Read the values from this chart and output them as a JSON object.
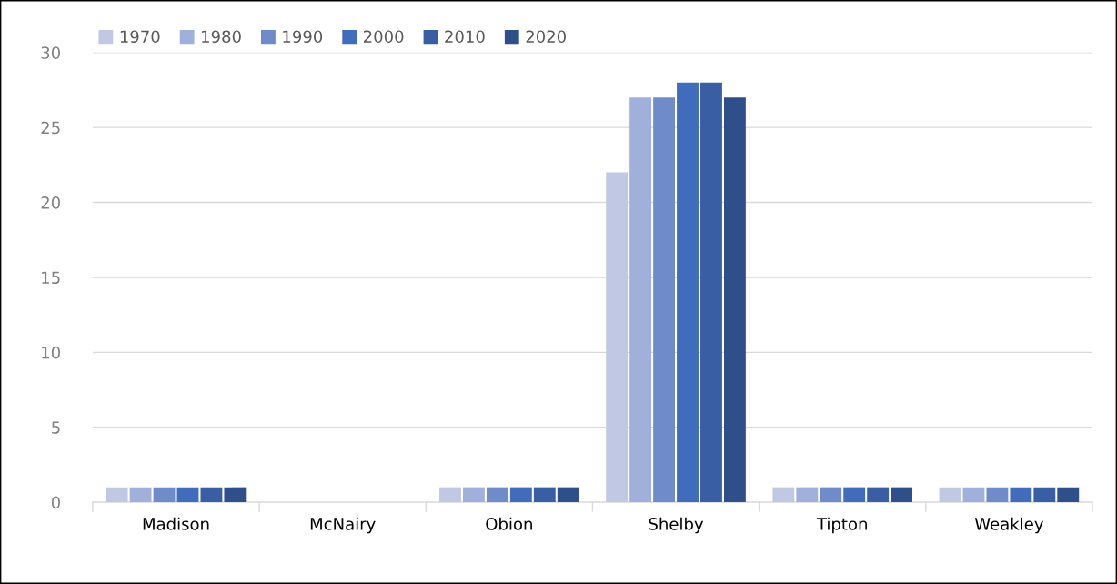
{
  "chart_data": {
    "type": "bar",
    "categories": [
      "Madison",
      "McNairy",
      "Obion",
      "Shelby",
      "Tipton",
      "Weakley"
    ],
    "series": [
      {
        "name": "1970",
        "color": "#c0c8e3",
        "values": [
          1,
          0,
          1,
          22,
          1,
          1
        ]
      },
      {
        "name": "1980",
        "color": "#a0b0da",
        "values": [
          1,
          0,
          1,
          27,
          1,
          1
        ]
      },
      {
        "name": "1990",
        "color": "#708bca",
        "values": [
          1,
          0,
          1,
          27,
          1,
          1
        ]
      },
      {
        "name": "2000",
        "color": "#416cbb",
        "values": [
          1,
          0,
          1,
          28,
          1,
          1
        ]
      },
      {
        "name": "2010",
        "color": "#395ea3",
        "values": [
          1,
          0,
          1,
          28,
          1,
          1
        ]
      },
      {
        "name": "2020",
        "color": "#2f4f8b",
        "values": [
          1,
          0,
          1,
          27,
          1,
          1
        ]
      }
    ],
    "ylim": [
      0,
      30
    ],
    "yticks": [
      0,
      5,
      10,
      15,
      20,
      25,
      30
    ],
    "grid": "y",
    "legend": "top left"
  }
}
